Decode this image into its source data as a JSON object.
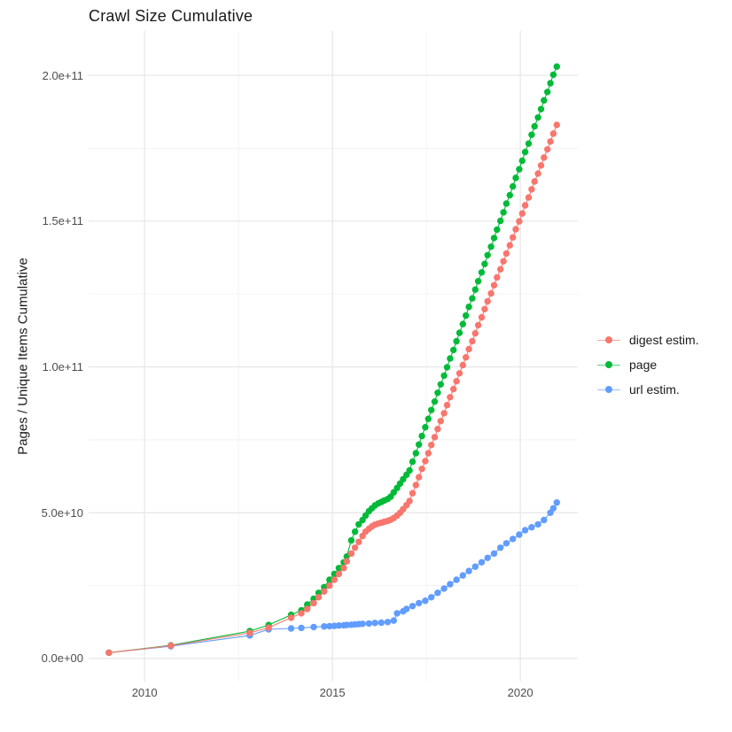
{
  "page": {
    "title": "Crawl Size Cumulative"
  },
  "chart_data": {
    "type": "line",
    "title": "Crawl Size Cumulative",
    "xlabel": "",
    "ylabel": "Pages / Unique Items Cumulative",
    "grid": true,
    "legend_position": "right",
    "xlim": [
      2008.51,
      2021.53
    ],
    "ylim_e9": [
      -7.9,
      215.2
    ],
    "x_ticks": {
      "values": [
        2010,
        2015,
        2020
      ],
      "labels": [
        "2010",
        "2015",
        "2020"
      ]
    },
    "x_minor_ticks": [
      2012.5,
      2017.5
    ],
    "y_ticks": {
      "values_e9": [
        0,
        50,
        100,
        150,
        200
      ],
      "labels": [
        "0.0e+00",
        "5.0e+10",
        "1.0e+11",
        "1.5e+11",
        "2.0e+11"
      ]
    },
    "y_minor_ticks_e9": [
      25,
      75,
      125,
      175
    ],
    "points_unit": "billions (1e9)",
    "colors": {
      "major_grid": "#e6e6e6",
      "minor_grid": "#f2f2f2",
      "axis_text": "#4d4d4d"
    },
    "legend": [
      {
        "label": "digest estim.",
        "color": "#F8766D"
      },
      {
        "label": "page",
        "color": "#00BA38"
      },
      {
        "label": "url estim.",
        "color": "#619CFF"
      }
    ],
    "series": [
      {
        "name": "digest estim.",
        "color": "#F8766D",
        "points": [
          [
            2009.05,
            2
          ],
          [
            2010.7,
            4.4
          ],
          [
            2012.8,
            8.8
          ],
          [
            2013.3,
            10.6
          ],
          [
            2013.9,
            14
          ],
          [
            2014.17,
            15.5
          ],
          [
            2014.33,
            17
          ],
          [
            2014.5,
            19
          ],
          [
            2014.63,
            21
          ],
          [
            2014.78,
            23
          ],
          [
            2014.92,
            25
          ],
          [
            2015.05,
            27
          ],
          [
            2015.17,
            29
          ],
          [
            2015.3,
            31
          ],
          [
            2015.38,
            33.3
          ],
          [
            2015.5,
            36
          ],
          [
            2015.6,
            38
          ],
          [
            2015.7,
            40
          ],
          [
            2015.8,
            42
          ],
          [
            2015.88,
            43.5
          ],
          [
            2015.97,
            44.5
          ],
          [
            2016.05,
            45.3
          ],
          [
            2016.13,
            45.9
          ],
          [
            2016.22,
            46.3
          ],
          [
            2016.3,
            46.6
          ],
          [
            2016.38,
            46.9
          ],
          [
            2016.47,
            47.2
          ],
          [
            2016.55,
            47.6
          ],
          [
            2016.63,
            48.2
          ],
          [
            2016.72,
            49
          ],
          [
            2016.8,
            50
          ],
          [
            2016.88,
            51.2
          ],
          [
            2016.97,
            52.6
          ],
          [
            2017.05,
            54
          ],
          [
            2017.13,
            56.7
          ],
          [
            2017.22,
            59.5
          ],
          [
            2017.3,
            62.2
          ],
          [
            2017.38,
            65
          ],
          [
            2017.47,
            67.7
          ],
          [
            2017.55,
            70.4
          ],
          [
            2017.63,
            73.2
          ],
          [
            2017.72,
            75.9
          ],
          [
            2017.8,
            78.7
          ],
          [
            2017.88,
            81.4
          ],
          [
            2017.97,
            84.1
          ],
          [
            2018.05,
            86.9
          ],
          [
            2018.13,
            89.6
          ],
          [
            2018.22,
            92.4
          ],
          [
            2018.3,
            95.1
          ],
          [
            2018.38,
            97.8
          ],
          [
            2018.47,
            100.6
          ],
          [
            2018.55,
            103.3
          ],
          [
            2018.63,
            106.1
          ],
          [
            2018.72,
            108.8
          ],
          [
            2018.8,
            111.5
          ],
          [
            2018.88,
            114.3
          ],
          [
            2018.97,
            117
          ],
          [
            2019.05,
            119.8
          ],
          [
            2019.13,
            122.5
          ],
          [
            2019.22,
            125.2
          ],
          [
            2019.3,
            128
          ],
          [
            2019.38,
            130.7
          ],
          [
            2019.47,
            133.5
          ],
          [
            2019.55,
            136.2
          ],
          [
            2019.63,
            138.9
          ],
          [
            2019.72,
            141.7
          ],
          [
            2019.8,
            144.4
          ],
          [
            2019.88,
            147.2
          ],
          [
            2019.97,
            149.9
          ],
          [
            2020.05,
            152.6
          ],
          [
            2020.13,
            155.4
          ],
          [
            2020.22,
            158.1
          ],
          [
            2020.3,
            160.9
          ],
          [
            2020.38,
            163.6
          ],
          [
            2020.47,
            166.3
          ],
          [
            2020.55,
            169.1
          ],
          [
            2020.63,
            171.8
          ],
          [
            2020.72,
            174.6
          ],
          [
            2020.8,
            177.3
          ],
          [
            2020.88,
            180
          ],
          [
            2020.97,
            183
          ]
        ]
      },
      {
        "name": "page",
        "color": "#00BA38",
        "points": [
          [
            2009.05,
            2
          ],
          [
            2010.7,
            4.5
          ],
          [
            2012.8,
            9.4
          ],
          [
            2013.3,
            11.5
          ],
          [
            2013.9,
            15
          ],
          [
            2014.17,
            16.5
          ],
          [
            2014.33,
            18.5
          ],
          [
            2014.5,
            20.5
          ],
          [
            2014.63,
            22.5
          ],
          [
            2014.78,
            24.5
          ],
          [
            2014.92,
            27
          ],
          [
            2015.05,
            29
          ],
          [
            2015.17,
            31
          ],
          [
            2015.3,
            33
          ],
          [
            2015.38,
            35
          ],
          [
            2015.5,
            40.5
          ],
          [
            2015.6,
            43.5
          ],
          [
            2015.7,
            46
          ],
          [
            2015.8,
            47.5
          ],
          [
            2015.88,
            49
          ],
          [
            2015.97,
            50.5
          ],
          [
            2016.05,
            51.5
          ],
          [
            2016.13,
            52.5
          ],
          [
            2016.22,
            53.2
          ],
          [
            2016.3,
            53.7
          ],
          [
            2016.38,
            54.2
          ],
          [
            2016.47,
            54.7
          ],
          [
            2016.55,
            55.5
          ],
          [
            2016.63,
            57
          ],
          [
            2016.72,
            58.5
          ],
          [
            2016.8,
            60
          ],
          [
            2016.88,
            61.5
          ],
          [
            2016.97,
            63
          ],
          [
            2017.05,
            64.5
          ],
          [
            2017.13,
            67.5
          ],
          [
            2017.22,
            70.4
          ],
          [
            2017.3,
            73.4
          ],
          [
            2017.38,
            76.3
          ],
          [
            2017.47,
            79.3
          ],
          [
            2017.55,
            82.2
          ],
          [
            2017.63,
            85.2
          ],
          [
            2017.72,
            88.1
          ],
          [
            2017.8,
            91.1
          ],
          [
            2017.88,
            94
          ],
          [
            2017.97,
            97
          ],
          [
            2018.05,
            99.9
          ],
          [
            2018.13,
            102.9
          ],
          [
            2018.22,
            105.8
          ],
          [
            2018.3,
            108.8
          ],
          [
            2018.38,
            111.7
          ],
          [
            2018.47,
            114.7
          ],
          [
            2018.55,
            117.6
          ],
          [
            2018.63,
            120.6
          ],
          [
            2018.72,
            123.5
          ],
          [
            2018.8,
            126.5
          ],
          [
            2018.88,
            129.4
          ],
          [
            2018.97,
            132.4
          ],
          [
            2019.05,
            135.3
          ],
          [
            2019.13,
            138.3
          ],
          [
            2019.22,
            141.2
          ],
          [
            2019.3,
            144.2
          ],
          [
            2019.38,
            147.1
          ],
          [
            2019.47,
            150.1
          ],
          [
            2019.55,
            153
          ],
          [
            2019.63,
            156
          ],
          [
            2019.72,
            158.9
          ],
          [
            2019.8,
            161.9
          ],
          [
            2019.88,
            164.8
          ],
          [
            2019.97,
            167.8
          ],
          [
            2020.05,
            170.7
          ],
          [
            2020.13,
            173.7
          ],
          [
            2020.22,
            176.6
          ],
          [
            2020.3,
            179.6
          ],
          [
            2020.38,
            182.5
          ],
          [
            2020.47,
            185.5
          ],
          [
            2020.55,
            188.4
          ],
          [
            2020.63,
            191.4
          ],
          [
            2020.72,
            194.3
          ],
          [
            2020.8,
            197.3
          ],
          [
            2020.88,
            200.2
          ],
          [
            2020.97,
            203
          ]
        ]
      },
      {
        "name": "url estim.",
        "color": "#619CFF",
        "points": [
          [
            2009.05,
            2
          ],
          [
            2010.7,
            4.2
          ],
          [
            2012.8,
            7.9
          ],
          [
            2013.3,
            10
          ],
          [
            2013.9,
            10.3
          ],
          [
            2014.17,
            10.5
          ],
          [
            2014.5,
            10.8
          ],
          [
            2014.78,
            11
          ],
          [
            2014.92,
            11.1
          ],
          [
            2015.05,
            11.2
          ],
          [
            2015.17,
            11.3
          ],
          [
            2015.3,
            11.4
          ],
          [
            2015.38,
            11.5
          ],
          [
            2015.5,
            11.6
          ],
          [
            2015.6,
            11.7
          ],
          [
            2015.7,
            11.8
          ],
          [
            2015.8,
            11.9
          ],
          [
            2015.97,
            12
          ],
          [
            2016.13,
            12.2
          ],
          [
            2016.3,
            12.3
          ],
          [
            2016.47,
            12.5
          ],
          [
            2016.63,
            13
          ],
          [
            2016.72,
            15.5
          ],
          [
            2016.88,
            16.2
          ],
          [
            2016.97,
            17
          ],
          [
            2017.13,
            18
          ],
          [
            2017.3,
            19
          ],
          [
            2017.47,
            19.8
          ],
          [
            2017.63,
            21
          ],
          [
            2017.8,
            22.5
          ],
          [
            2017.97,
            24
          ],
          [
            2018.13,
            25.5
          ],
          [
            2018.3,
            27
          ],
          [
            2018.47,
            28.5
          ],
          [
            2018.63,
            30
          ],
          [
            2018.8,
            31.5
          ],
          [
            2018.97,
            33
          ],
          [
            2019.13,
            34.5
          ],
          [
            2019.3,
            36
          ],
          [
            2019.47,
            38
          ],
          [
            2019.63,
            39.5
          ],
          [
            2019.8,
            41
          ],
          [
            2019.97,
            42.5
          ],
          [
            2020.13,
            44
          ],
          [
            2020.3,
            45
          ],
          [
            2020.47,
            46
          ],
          [
            2020.63,
            47.5
          ],
          [
            2020.8,
            50
          ],
          [
            2020.88,
            51.5
          ],
          [
            2020.97,
            53.5
          ]
        ]
      }
    ]
  }
}
